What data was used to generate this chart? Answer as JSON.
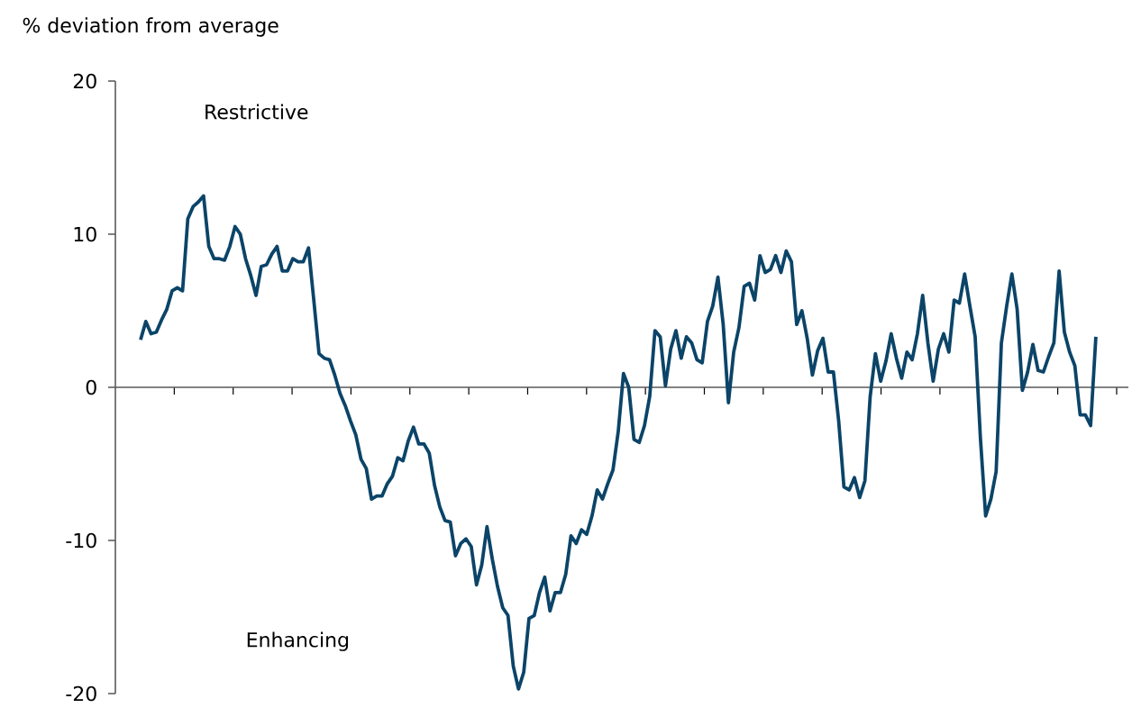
{
  "chart_data": {
    "type": "line",
    "ylabel": "% deviation from average",
    "annotations": [
      "Restrictive",
      "Enhancing"
    ],
    "categories": [
      null,
      null,
      null,
      null,
      null,
      null,
      null,
      null,
      null,
      null,
      null,
      null,
      null,
      null,
      null,
      null,
      null,
      null,
      null,
      null,
      null,
      null,
      null,
      null,
      null,
      null,
      null,
      null,
      null,
      null,
      null,
      null,
      null,
      null,
      null,
      null,
      null,
      null,
      null,
      null,
      null,
      null,
      null,
      null,
      null,
      null,
      null,
      null,
      null,
      null,
      null,
      null,
      null,
      null,
      null,
      null,
      null,
      null,
      null,
      null,
      null,
      null,
      null,
      null,
      null,
      null,
      null,
      null,
      null,
      null,
      null,
      null,
      null,
      null,
      null,
      null,
      null,
      null,
      null,
      null,
      null,
      null,
      null,
      null,
      null,
      null,
      null,
      null,
      null,
      null,
      null,
      null,
      null,
      null,
      null,
      null,
      null,
      null,
      null,
      null,
      null,
      null,
      null,
      null,
      null,
      null,
      null,
      null,
      null,
      null,
      null,
      null,
      null,
      null,
      null,
      null,
      null,
      null,
      null,
      null,
      null,
      null,
      null,
      null,
      null,
      null,
      null,
      null,
      null,
      null,
      null,
      null,
      null,
      null,
      null,
      null,
      null,
      null,
      null,
      null,
      null,
      null,
      null,
      null,
      null,
      null,
      null,
      null,
      null,
      null,
      null,
      null,
      null,
      null,
      null,
      null,
      null,
      null,
      null,
      null,
      null,
      null,
      null,
      null,
      null,
      null,
      null,
      null,
      null,
      null,
      null,
      null,
      null,
      null,
      null,
      null,
      null,
      null,
      null,
      null,
      null,
      null,
      null
    ],
    "series": [
      {
        "color": "#0b4468",
        "values": [
          3.1,
          4.3,
          3.5,
          3.6,
          4.4,
          5.1,
          6.3,
          6.5,
          6.3,
          11.0,
          11.8,
          12.1,
          12.5,
          9.2,
          8.4,
          8.4,
          8.3,
          9.2,
          10.5,
          10.0,
          8.4,
          7.3,
          6.0,
          7.9,
          8.0,
          8.7,
          9.2,
          7.6,
          7.6,
          8.4,
          8.2,
          8.2,
          9.1,
          5.7,
          2.2,
          1.9,
          1.8,
          0.8,
          -0.4,
          -1.2,
          -2.2,
          -3.1,
          -4.7,
          -5.3,
          -7.3,
          -7.1,
          -7.1,
          -6.3,
          -5.8,
          -4.6,
          -4.8,
          -3.5,
          -2.6,
          -3.7,
          -3.7,
          -4.3,
          -6.4,
          -7.8,
          -8.7,
          -8.8,
          -11.0,
          -10.2,
          -9.9,
          -10.4,
          -12.9,
          -11.6,
          -9.1,
          -11.2,
          -13.0,
          -14.4,
          -14.9,
          -18.2,
          -19.7,
          -18.6,
          -15.1,
          -14.9,
          -13.4,
          -12.4,
          -14.6,
          -13.4,
          -13.4,
          -12.2,
          -9.7,
          -10.2,
          -9.3,
          -9.6,
          -8.4,
          -6.7,
          -7.3,
          -6.3,
          -5.4,
          -2.9,
          0.9,
          0.0,
          -3.4,
          -3.6,
          -2.5,
          -0.6,
          3.7,
          3.3,
          0.1,
          2.5,
          3.7,
          1.9,
          3.3,
          2.9,
          1.8,
          1.6,
          4.3,
          5.3,
          7.2,
          4.1,
          -1.0,
          2.3,
          3.9,
          6.6,
          6.8,
          5.7,
          8.6,
          7.5,
          7.7,
          8.6,
          7.5,
          8.9,
          8.2,
          4.1,
          5.0,
          3.2,
          0.8,
          2.4,
          3.2,
          1.0,
          1.0,
          -2.2,
          -6.5,
          -6.7,
          -5.9,
          -7.2,
          -6.1,
          -0.6,
          2.2,
          0.4,
          1.7,
          3.5,
          1.9,
          0.6,
          2.3,
          1.8,
          3.5,
          6.0,
          2.9,
          0.4,
          2.5,
          3.5,
          2.3,
          5.7,
          5.5,
          7.4,
          5.3,
          3.3,
          -3.3,
          -8.4,
          -7.3,
          -5.5,
          2.9,
          5.3,
          7.4,
          5.1,
          -0.2,
          1.0,
          2.8,
          1.1,
          1.0,
          2.0,
          2.9,
          7.6,
          3.6,
          2.3,
          1.4,
          -1.8,
          -1.8,
          -2.5,
          3.3
        ]
      }
    ],
    "ylim": [
      -20,
      20
    ],
    "yticks": [
      -20,
      -10,
      0,
      10,
      20
    ]
  }
}
